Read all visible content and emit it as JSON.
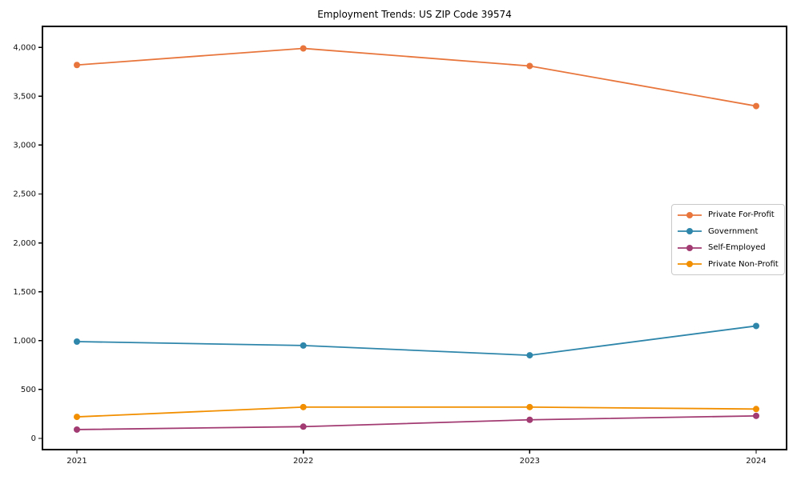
{
  "chart_data": {
    "type": "line",
    "title": "Employment Trends: US ZIP Code 39574",
    "xlabel": "",
    "ylabel": "",
    "categories": [
      "2021",
      "2022",
      "2023",
      "2024"
    ],
    "series": [
      {
        "name": "Private For-Profit",
        "color": "#e8763c",
        "values": [
          3820,
          3990,
          3810,
          3400
        ]
      },
      {
        "name": "Government",
        "color": "#2e86ab",
        "values": [
          990,
          950,
          850,
          1150
        ]
      },
      {
        "name": "Self-Employed",
        "color": "#a23b72",
        "values": [
          90,
          120,
          190,
          230
        ]
      },
      {
        "name": "Private Non-Profit",
        "color": "#f18f01",
        "values": [
          220,
          320,
          320,
          300
        ]
      }
    ],
    "yticks": [
      0,
      500,
      1000,
      1500,
      2000,
      2500,
      3000,
      3500,
      4000
    ],
    "ytick_format": "comma",
    "ylim": [
      -115,
      4215
    ],
    "grid": false,
    "legend_position": "center right",
    "marker": "circle",
    "axis_color": "#000000",
    "background": "#ffffff"
  }
}
